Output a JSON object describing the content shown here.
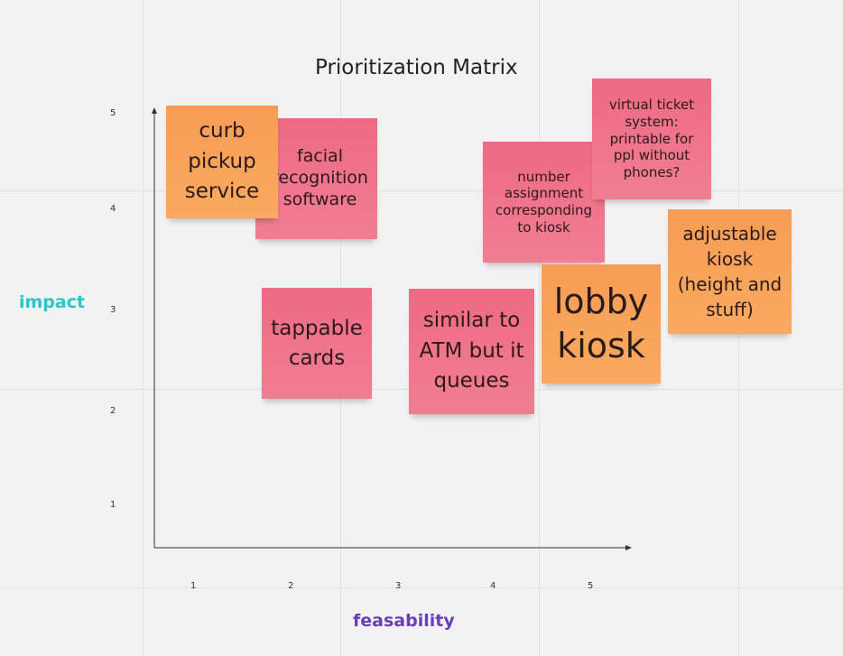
{
  "title": "Prioritization Matrix",
  "axes": {
    "y_label": "impact",
    "x_label": "feasability",
    "y_ticks": [
      "5",
      "4",
      "3",
      "2",
      "1"
    ],
    "x_ticks": [
      "1",
      "2",
      "3",
      "4",
      "5"
    ]
  },
  "colors": {
    "pink_note": "#ee6a84",
    "orange_note": "#f79c54",
    "impact_label": "#26c6c9",
    "feasability_label": "#6a3fb5"
  },
  "notes": [
    {
      "text": "facial recognition software",
      "color": "pink"
    },
    {
      "text": "curb pickup service",
      "color": "orange"
    },
    {
      "text": "tappable cards",
      "color": "pink"
    },
    {
      "text": "similar to ATM but it queues",
      "color": "pink"
    },
    {
      "text": "number assignment corresponding to kiosk",
      "color": "pink"
    },
    {
      "text": "virtual ticket system: printable for ppl without phones?",
      "color": "pink"
    },
    {
      "text": "lobby kiosk",
      "color": "orange"
    },
    {
      "text": "adjustable kiosk (height and stuff)",
      "color": "orange"
    }
  ]
}
